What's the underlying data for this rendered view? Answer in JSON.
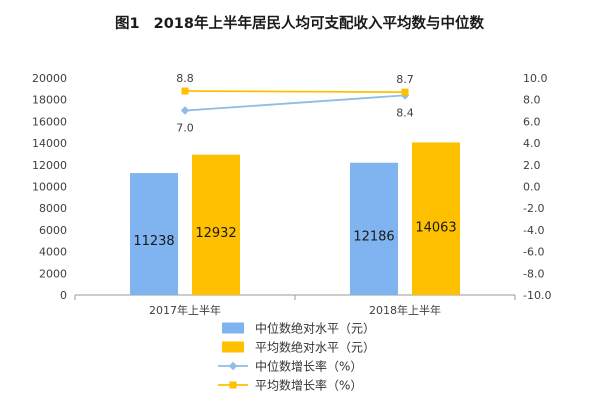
{
  "figure": {
    "label": "图1",
    "title": "2018年上半年居民人均可支配收入平均数与中位数"
  },
  "colors": {
    "median_bar": "#7fb4f0",
    "mean_bar": "#ffc000",
    "median_line": "#8fbce8",
    "mean_line": "#ffc000",
    "axis": "#9a9a9a",
    "text": "#404040"
  },
  "chart_data": {
    "type": "bar",
    "categories": [
      "2017年上半年",
      "2018年上半年"
    ],
    "left_axis": {
      "min": 0,
      "max": 20000,
      "step": 2000,
      "ticks": [
        "0",
        "2000",
        "4000",
        "6000",
        "8000",
        "10000",
        "12000",
        "14000",
        "16000",
        "18000",
        "20000"
      ]
    },
    "right_axis": {
      "min": -10,
      "max": 10,
      "step": 2,
      "ticks": [
        "-10.0",
        "-8.0",
        "-6.0",
        "-4.0",
        "-2.0",
        "0.0",
        "2.0",
        "4.0",
        "6.0",
        "8.0",
        "10.0"
      ]
    },
    "bar_series": [
      {
        "name": "中位数绝对水平（元）",
        "values": [
          11238,
          12186
        ],
        "labels": [
          "11238",
          "12186"
        ]
      },
      {
        "name": "平均数绝对水平（元）",
        "values": [
          12932,
          14063
        ],
        "labels": [
          "12932",
          "14063"
        ]
      }
    ],
    "line_series": [
      {
        "name": "中位数增长率（%）",
        "values": [
          7.0,
          8.4
        ],
        "labels": [
          "7.0",
          "8.4"
        ]
      },
      {
        "name": "平均数增长率（%）",
        "values": [
          8.8,
          8.7
        ],
        "labels": [
          "8.8",
          "8.7"
        ]
      }
    ],
    "grid": false,
    "legend_position": "bottom"
  }
}
